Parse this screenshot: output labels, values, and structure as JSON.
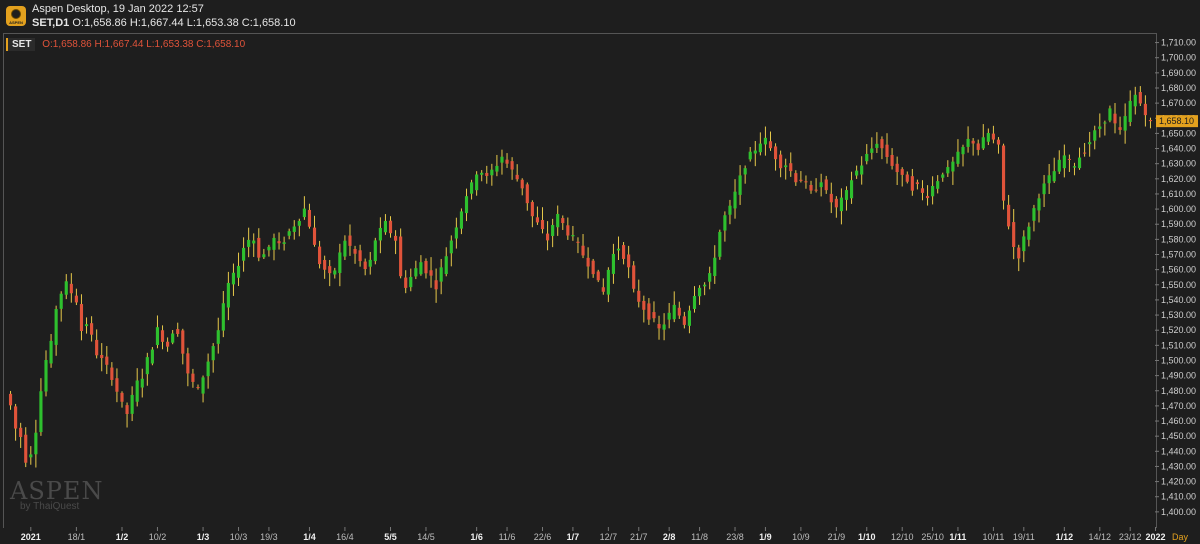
{
  "header": {
    "app_title": "Aspen Desktop, 19 Jan 2022 12:57",
    "symbol": "SET,D1",
    "ohlc": "O:1,658.86 H:1,667.44 L:1,653.38 C:1,658.10",
    "logo_text": "ASPEN"
  },
  "legend": {
    "symbol": "SET",
    "values": "O:1,658.86 H:1,667.44 L:1,653.38 C:1,658.10"
  },
  "watermark": {
    "brand": "ASPEN",
    "by": "by ThaiQuest"
  },
  "colors": {
    "up": "#2ec02e",
    "down": "#e0533a",
    "wick_up": "#e6c84a",
    "wick_down": "#e6c84a",
    "last_price_bg": "#e3a11e"
  },
  "chart_data": {
    "type": "candlestick",
    "title": "",
    "timeframe_label": "Day",
    "ylim": [
      1390,
      1715
    ],
    "y_ticks": [
      1400,
      1410,
      1420,
      1430,
      1440,
      1450,
      1460,
      1470,
      1480,
      1490,
      1500,
      1510,
      1520,
      1530,
      1540,
      1550,
      1560,
      1570,
      1580,
      1590,
      1600,
      1610,
      1620,
      1630,
      1640,
      1650,
      1660,
      1670,
      1680,
      1690,
      1700,
      1710
    ],
    "last_price": 1658.1,
    "last_price_label": "1,658.10",
    "x_labels": [
      {
        "label": "2021",
        "i": 4,
        "bold": true
      },
      {
        "label": "18/1",
        "i": 13,
        "bold": false
      },
      {
        "label": "1/2",
        "i": 22,
        "bold": true
      },
      {
        "label": "10/2",
        "i": 29,
        "bold": false
      },
      {
        "label": "1/3",
        "i": 38,
        "bold": true
      },
      {
        "label": "10/3",
        "i": 45,
        "bold": false
      },
      {
        "label": "19/3",
        "i": 51,
        "bold": false
      },
      {
        "label": "1/4",
        "i": 59,
        "bold": true
      },
      {
        "label": "16/4",
        "i": 66,
        "bold": false
      },
      {
        "label": "5/5",
        "i": 75,
        "bold": true
      },
      {
        "label": "14/5",
        "i": 82,
        "bold": false
      },
      {
        "label": "1/6",
        "i": 92,
        "bold": true
      },
      {
        "label": "11/6",
        "i": 98,
        "bold": false
      },
      {
        "label": "22/6",
        "i": 105,
        "bold": false
      },
      {
        "label": "1/7",
        "i": 111,
        "bold": true
      },
      {
        "label": "12/7",
        "i": 118,
        "bold": false
      },
      {
        "label": "21/7",
        "i": 124,
        "bold": false
      },
      {
        "label": "2/8",
        "i": 130,
        "bold": true
      },
      {
        "label": "11/8",
        "i": 136,
        "bold": false
      },
      {
        "label": "23/8",
        "i": 143,
        "bold": false
      },
      {
        "label": "1/9",
        "i": 149,
        "bold": true
      },
      {
        "label": "10/9",
        "i": 156,
        "bold": false
      },
      {
        "label": "21/9",
        "i": 163,
        "bold": false
      },
      {
        "label": "1/10",
        "i": 169,
        "bold": true
      },
      {
        "label": "12/10",
        "i": 176,
        "bold": false
      },
      {
        "label": "25/10",
        "i": 182,
        "bold": false
      },
      {
        "label": "1/11",
        "i": 187,
        "bold": true
      },
      {
        "label": "10/11",
        "i": 194,
        "bold": false
      },
      {
        "label": "19/11",
        "i": 200,
        "bold": false
      },
      {
        "label": "1/12",
        "i": 208,
        "bold": true
      },
      {
        "label": "14/12",
        "i": 215,
        "bold": false
      },
      {
        "label": "23/12",
        "i": 221,
        "bold": false
      },
      {
        "label": "2022",
        "i": 226,
        "bold": true
      }
    ],
    "closes": [
      1470,
      1455,
      1450,
      1435,
      1440,
      1455,
      1480,
      1500,
      1510,
      1535,
      1545,
      1550,
      1545,
      1540,
      1520,
      1525,
      1515,
      1505,
      1500,
      1495,
      1490,
      1480,
      1470,
      1465,
      1475,
      1485,
      1490,
      1500,
      1510,
      1520,
      1515,
      1510,
      1520,
      1520,
      1505,
      1490,
      1485,
      1480,
      1490,
      1500,
      1510,
      1520,
      1535,
      1550,
      1555,
      1565,
      1575,
      1580,
      1580,
      1570,
      1570,
      1575,
      1580,
      1575,
      1580,
      1585,
      1590,
      1595,
      1600,
      1590,
      1575,
      1565,
      1560,
      1555,
      1560,
      1570,
      1580,
      1575,
      1570,
      1565,
      1560,
      1565,
      1580,
      1585,
      1590,
      1585,
      1580,
      1555,
      1550,
      1555,
      1560,
      1565,
      1560,
      1555,
      1550,
      1560,
      1570,
      1580,
      1590,
      1600,
      1610,
      1615,
      1625,
      1625,
      1620,
      1625,
      1630,
      1635,
      1630,
      1625,
      1620,
      1615,
      1605,
      1595,
      1590,
      1585,
      1580,
      1590,
      1595,
      1590,
      1585,
      1580,
      1575,
      1570,
      1565,
      1560,
      1550,
      1545,
      1560,
      1570,
      1575,
      1570,
      1560,
      1545,
      1540,
      1535,
      1530,
      1525,
      1520,
      1525,
      1530,
      1535,
      1530,
      1525,
      1535,
      1545,
      1550,
      1550,
      1555,
      1570,
      1585,
      1595,
      1600,
      1610,
      1620,
      1630,
      1635,
      1640,
      1645,
      1645,
      1640,
      1635,
      1630,
      1630,
      1625,
      1620,
      1620,
      1615,
      1610,
      1615,
      1620,
      1610,
      1605,
      1600,
      1605,
      1610,
      1620,
      1625,
      1630,
      1635,
      1640,
      1645,
      1640,
      1635,
      1630,
      1625,
      1620,
      1620,
      1615,
      1615,
      1610,
      1610,
      1615,
      1620,
      1625,
      1625,
      1630,
      1635,
      1640,
      1645,
      1645,
      1640,
      1645,
      1650,
      1645,
      1640,
      1605,
      1590,
      1575,
      1570,
      1580,
      1590,
      1600,
      1610,
      1615,
      1620,
      1625,
      1630,
      1635,
      1630,
      1630,
      1635,
      1640,
      1645,
      1650,
      1655,
      1660,
      1665,
      1655,
      1650,
      1660,
      1670,
      1675,
      1670,
      1665,
      1658.1
    ]
  }
}
